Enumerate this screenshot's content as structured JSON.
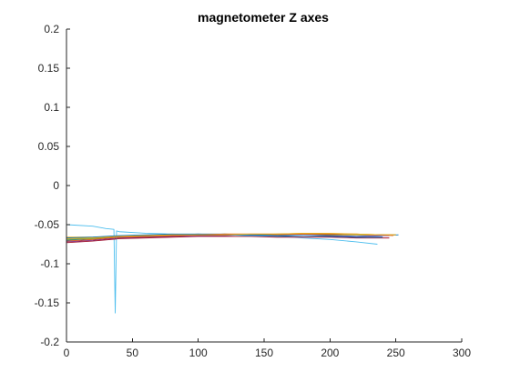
{
  "chart_data": {
    "type": "line",
    "title": "magnetometer Z axes",
    "xlabel": "",
    "ylabel": "",
    "xlim": [
      0,
      300
    ],
    "ylim": [
      -0.2,
      0.2
    ],
    "xticks": [
      0,
      50,
      100,
      150,
      200,
      250,
      300
    ],
    "yticks": [
      -0.2,
      -0.15,
      -0.1,
      -0.05,
      0,
      0.05,
      0.1,
      0.15,
      0.2
    ],
    "xtick_labels": [
      "0",
      "50",
      "100",
      "150",
      "200",
      "250",
      "300"
    ],
    "ytick_labels": [
      "-0.2",
      "-0.15",
      "-0.1",
      "-0.05",
      "0",
      "0.05",
      "0.1",
      "0.15",
      "0.2"
    ],
    "grid": false,
    "box": "left-bottom",
    "series": [
      {
        "color": "#0072BD",
        "x": [
          0,
          20,
          40,
          60,
          80,
          100,
          120,
          140,
          160,
          180,
          200,
          220,
          240,
          252
        ],
        "y": [
          -0.07,
          -0.068,
          -0.066,
          -0.065,
          -0.063,
          -0.062,
          -0.063,
          -0.064,
          -0.065,
          -0.064,
          -0.064,
          -0.065,
          -0.064,
          -0.063
        ]
      },
      {
        "color": "#D95319",
        "x": [
          0,
          20,
          40,
          60,
          80,
          100,
          120,
          140,
          160,
          180,
          200,
          220,
          240,
          250
        ],
        "y": [
          -0.068,
          -0.067,
          -0.066,
          -0.065,
          -0.064,
          -0.064,
          -0.063,
          -0.063,
          -0.063,
          -0.062,
          -0.062,
          -0.063,
          -0.063,
          -0.063
        ]
      },
      {
        "color": "#EDB120",
        "x": [
          0,
          20,
          40,
          60,
          80,
          100,
          120,
          140,
          160,
          180,
          200,
          220,
          240
        ],
        "y": [
          -0.066,
          -0.066,
          -0.065,
          -0.064,
          -0.063,
          -0.063,
          -0.062,
          -0.062,
          -0.062,
          -0.061,
          -0.062,
          -0.062,
          -0.063
        ]
      },
      {
        "color": "#7E2F8E",
        "x": [
          0,
          20,
          40,
          60,
          80,
          100,
          120,
          140,
          160,
          180,
          200,
          220,
          240,
          245
        ],
        "y": [
          -0.072,
          -0.07,
          -0.067,
          -0.066,
          -0.065,
          -0.064,
          -0.064,
          -0.063,
          -0.064,
          -0.064,
          -0.064,
          -0.065,
          -0.064,
          -0.064
        ]
      },
      {
        "color": "#77AC30",
        "x": [
          0,
          20,
          40,
          60,
          80,
          100,
          120,
          140,
          160,
          180,
          200,
          220,
          240,
          250
        ],
        "y": [
          -0.069,
          -0.068,
          -0.066,
          -0.065,
          -0.064,
          -0.063,
          -0.063,
          -0.063,
          -0.062,
          -0.062,
          -0.063,
          -0.063,
          -0.063,
          -0.063
        ]
      },
      {
        "color": "#4DBEEE",
        "x": [
          0,
          20,
          30,
          36,
          37,
          38,
          40,
          60,
          80,
          100,
          120,
          140,
          160,
          180,
          200,
          220,
          236
        ],
        "y": [
          -0.05,
          -0.052,
          -0.055,
          -0.056,
          -0.163,
          -0.058,
          -0.059,
          -0.061,
          -0.062,
          -0.063,
          -0.063,
          -0.064,
          -0.065,
          -0.067,
          -0.069,
          -0.072,
          -0.075
        ]
      },
      {
        "color": "#A2142F",
        "x": [
          0,
          20,
          40,
          60,
          80,
          100,
          120,
          140,
          160,
          180,
          200,
          220,
          240,
          245
        ],
        "y": [
          -0.073,
          -0.071,
          -0.068,
          -0.067,
          -0.066,
          -0.065,
          -0.065,
          -0.065,
          -0.066,
          -0.066,
          -0.066,
          -0.067,
          -0.067,
          -0.067
        ]
      },
      {
        "color": "#0072BD",
        "x": [
          0,
          20,
          40,
          60,
          80,
          100,
          120,
          140,
          160,
          180,
          200,
          220,
          240
        ],
        "y": [
          -0.067,
          -0.066,
          -0.064,
          -0.063,
          -0.062,
          -0.062,
          -0.062,
          -0.063,
          -0.064,
          -0.064,
          -0.065,
          -0.066,
          -0.066
        ]
      },
      {
        "color": "#D95319",
        "x": [
          0,
          20,
          40,
          60,
          80,
          100,
          120,
          140,
          160,
          180,
          200,
          220,
          240,
          248
        ],
        "y": [
          -0.071,
          -0.069,
          -0.066,
          -0.065,
          -0.064,
          -0.063,
          -0.062,
          -0.062,
          -0.062,
          -0.062,
          -0.062,
          -0.062,
          -0.063,
          -0.064
        ]
      },
      {
        "color": "#EDB120",
        "x": [
          0,
          20,
          40,
          60,
          80,
          100,
          120,
          140,
          160,
          180,
          200,
          220,
          240,
          250
        ],
        "y": [
          -0.068,
          -0.067,
          -0.065,
          -0.064,
          -0.063,
          -0.063,
          -0.063,
          -0.062,
          -0.062,
          -0.061,
          -0.061,
          -0.062,
          -0.063,
          -0.063
        ]
      }
    ]
  }
}
